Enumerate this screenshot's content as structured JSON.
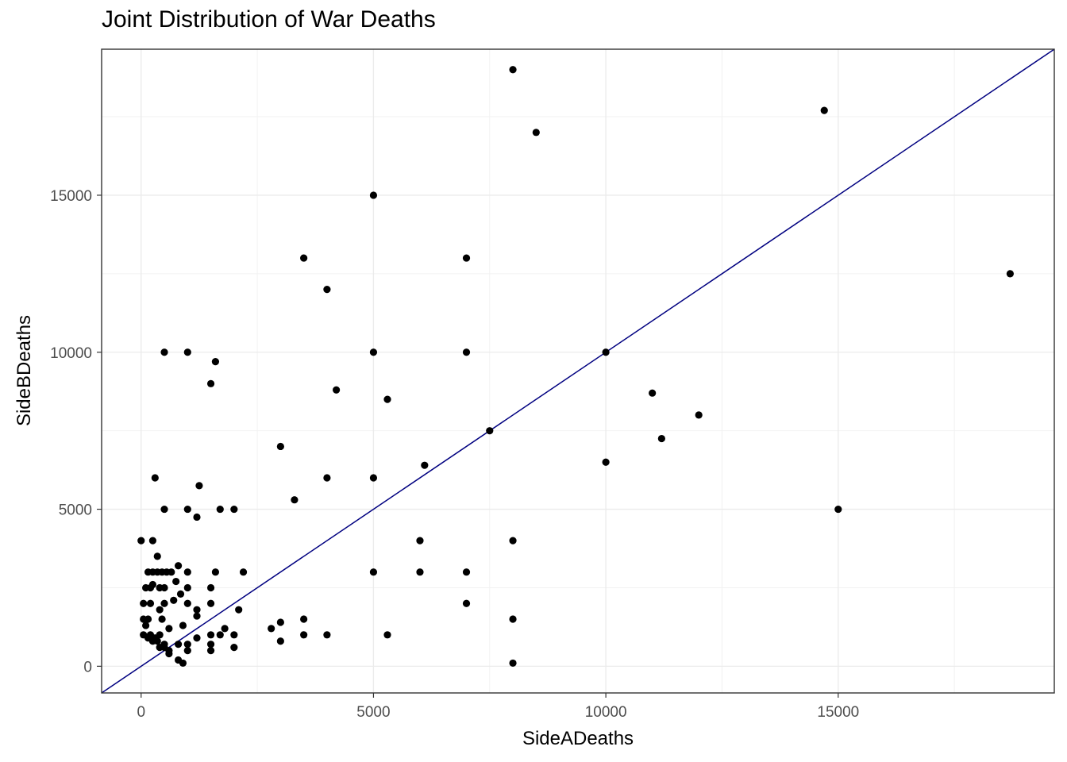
{
  "chart_data": {
    "type": "scatter",
    "title": "Joint Distribution of War Deaths",
    "xlabel": "SideADeaths",
    "ylabel": "SideBDeaths",
    "xlim": [
      -850,
      19650
    ],
    "ylim": [
      -850,
      19650
    ],
    "x_ticks": [
      0,
      5000,
      10000,
      15000
    ],
    "y_ticks": [
      0,
      5000,
      10000,
      15000
    ],
    "grid": true,
    "reference_line": {
      "slope": 1,
      "intercept": 0,
      "color": "#000080"
    },
    "point_color": "#000000",
    "points": [
      [
        8000,
        19000
      ],
      [
        14700,
        17700
      ],
      [
        8500,
        17000
      ],
      [
        5000,
        15000
      ],
      [
        3500,
        13000
      ],
      [
        7000,
        13000
      ],
      [
        18700,
        12500
      ],
      [
        4000,
        12000
      ],
      [
        500,
        10000
      ],
      [
        1000,
        10000
      ],
      [
        5000,
        10000
      ],
      [
        7000,
        10000
      ],
      [
        10000,
        10000
      ],
      [
        1600,
        9700
      ],
      [
        1500,
        9000
      ],
      [
        4200,
        8800
      ],
      [
        11000,
        8700
      ],
      [
        5300,
        8500
      ],
      [
        12000,
        8000
      ],
      [
        7500,
        7500
      ],
      [
        11200,
        7250
      ],
      [
        3000,
        7000
      ],
      [
        10000,
        6500
      ],
      [
        6100,
        6400
      ],
      [
        300,
        6000
      ],
      [
        4000,
        6000
      ],
      [
        5000,
        6000
      ],
      [
        1250,
        5750
      ],
      [
        3300,
        5300
      ],
      [
        500,
        5000
      ],
      [
        1000,
        5000
      ],
      [
        1700,
        5000
      ],
      [
        2000,
        5000
      ],
      [
        15000,
        5000
      ],
      [
        1200,
        4750
      ],
      [
        0,
        4000
      ],
      [
        250,
        4000
      ],
      [
        6000,
        4000
      ],
      [
        8000,
        4000
      ],
      [
        350,
        3500
      ],
      [
        800,
        3200
      ],
      [
        150,
        3000
      ],
      [
        250,
        3000
      ],
      [
        350,
        3000
      ],
      [
        450,
        3000
      ],
      [
        550,
        3000
      ],
      [
        650,
        3000
      ],
      [
        1000,
        3000
      ],
      [
        1600,
        3000
      ],
      [
        2200,
        3000
      ],
      [
        5000,
        3000
      ],
      [
        6000,
        3000
      ],
      [
        7000,
        3000
      ],
      [
        750,
        2700
      ],
      [
        250,
        2600
      ],
      [
        100,
        2500
      ],
      [
        200,
        2500
      ],
      [
        400,
        2500
      ],
      [
        500,
        2500
      ],
      [
        1000,
        2500
      ],
      [
        1500,
        2500
      ],
      [
        850,
        2300
      ],
      [
        700,
        2100
      ],
      [
        50,
        2000
      ],
      [
        200,
        2000
      ],
      [
        500,
        2000
      ],
      [
        1000,
        2000
      ],
      [
        1500,
        2000
      ],
      [
        7000,
        2000
      ],
      [
        400,
        1800
      ],
      [
        1200,
        1800
      ],
      [
        2100,
        1800
      ],
      [
        1200,
        1600
      ],
      [
        50,
        1500
      ],
      [
        150,
        1500
      ],
      [
        450,
        1500
      ],
      [
        3500,
        1500
      ],
      [
        8000,
        1500
      ],
      [
        100,
        1300
      ],
      [
        900,
        1300
      ],
      [
        3000,
        1400
      ],
      [
        600,
        1200
      ],
      [
        1800,
        1200
      ],
      [
        2800,
        1200
      ],
      [
        50,
        1000
      ],
      [
        200,
        1000
      ],
      [
        400,
        1000
      ],
      [
        1500,
        1000
      ],
      [
        1700,
        1000
      ],
      [
        2000,
        1000
      ],
      [
        3500,
        1000
      ],
      [
        4000,
        1000
      ],
      [
        5300,
        1000
      ],
      [
        300,
        900
      ],
      [
        150,
        900
      ],
      [
        1200,
        900
      ],
      [
        350,
        800
      ],
      [
        250,
        800
      ],
      [
        500,
        700
      ],
      [
        1000,
        700
      ],
      [
        1500,
        700
      ],
      [
        3000,
        800
      ],
      [
        400,
        600
      ],
      [
        500,
        600
      ],
      [
        800,
        700
      ],
      [
        600,
        500
      ],
      [
        1000,
        500
      ],
      [
        1500,
        500
      ],
      [
        2000,
        600
      ],
      [
        600,
        400
      ],
      [
        800,
        200
      ],
      [
        900,
        100
      ],
      [
        8000,
        100
      ]
    ]
  }
}
